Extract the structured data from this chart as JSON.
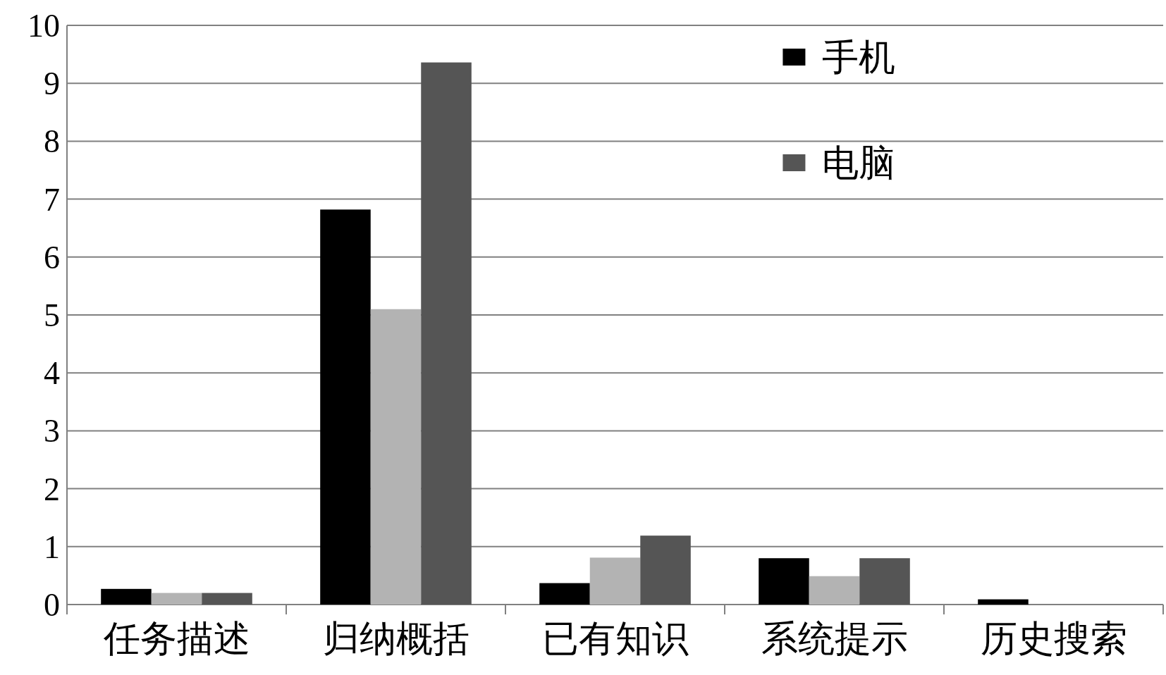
{
  "chart_data": {
    "type": "bar",
    "categories": [
      "任务描述",
      "归纳概括",
      "已有知识",
      "系统提示",
      "历史搜索"
    ],
    "series": [
      {
        "name": "手机",
        "color": "#000000",
        "values": [
          0.27,
          6.82,
          0.37,
          0.8,
          0.09
        ]
      },
      {
        "color": "#b3b3b3",
        "values": [
          0.2,
          5.1,
          0.81,
          0.49,
          0
        ]
      },
      {
        "name": "电脑",
        "color": "#555555",
        "values": [
          0.2,
          9.36,
          1.19,
          0.8,
          0
        ]
      }
    ],
    "ylim": [
      0,
      10
    ],
    "yticks": [
      0,
      1,
      2,
      3,
      4,
      5,
      6,
      7,
      8,
      9,
      10
    ],
    "grid": "y",
    "legend": "top right"
  }
}
